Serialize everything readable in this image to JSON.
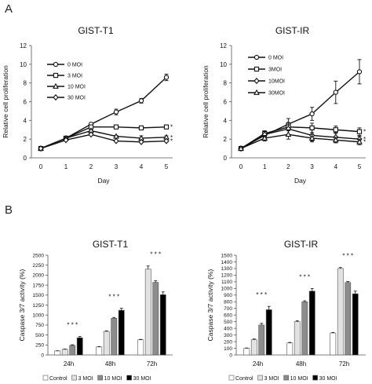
{
  "panels": {
    "a": "A",
    "b": "B"
  },
  "colors": {
    "line": "#111111",
    "bar_colors": [
      "#ffffff",
      "#e2e2e2",
      "#8c8c8c",
      "#000000"
    ]
  },
  "markers": [
    "circle",
    "square",
    "triangle",
    "diamond"
  ],
  "chart_data": [
    {
      "type": "line",
      "title": "GIST-T1",
      "xlabel": "Day",
      "ylabel": "Relative cell proliferation",
      "x": [
        0,
        1,
        2,
        3,
        4,
        5
      ],
      "ylim": [
        0,
        12
      ],
      "yticks": [
        0,
        2,
        4,
        6,
        8,
        10,
        12
      ],
      "series": [
        {
          "name": "0 MOI",
          "marker": "circle",
          "values": [
            1,
            2.1,
            3.6,
            4.9,
            6.1,
            8.6
          ],
          "errors": [
            0,
            0.1,
            0.15,
            0.3,
            0.25,
            0.35
          ],
          "star": ""
        },
        {
          "name": "3 MOI",
          "marker": "square",
          "values": [
            1,
            2.1,
            3.3,
            3.3,
            3.2,
            3.3
          ],
          "errors": [
            0,
            0.1,
            0.1,
            0.1,
            0.1,
            0.15
          ],
          "star": "*"
        },
        {
          "name": "10 MOI",
          "marker": "triangle",
          "values": [
            1,
            2.1,
            2.9,
            2.3,
            2.1,
            2.2
          ],
          "errors": [
            0,
            0.1,
            0.1,
            0.1,
            0.25,
            0.15
          ],
          "star": "*"
        },
        {
          "name": "30 MOI",
          "marker": "diamond",
          "values": [
            1,
            1.9,
            2.5,
            1.8,
            1.7,
            1.8
          ],
          "errors": [
            0,
            0.1,
            0.1,
            0.1,
            0.1,
            0.1
          ],
          "star": "*"
        }
      ]
    },
    {
      "type": "line",
      "title": "GIST-IR",
      "xlabel": "Day",
      "ylabel": "Relative cell proliferation",
      "x": [
        0,
        1,
        2,
        3,
        4,
        5
      ],
      "ylim": [
        0,
        12
      ],
      "yticks": [
        0,
        2,
        4,
        6,
        8,
        10,
        12
      ],
      "series": [
        {
          "name": "0 MOI",
          "marker": "circle",
          "values": [
            1,
            2.4,
            3.6,
            4.7,
            7.0,
            9.2
          ],
          "errors": [
            0,
            0.3,
            0.6,
            0.7,
            1.2,
            1.3
          ],
          "star": ""
        },
        {
          "name": "3MOI",
          "marker": "square",
          "values": [
            1,
            2.6,
            3.3,
            3.2,
            3.0,
            2.8
          ],
          "errors": [
            0,
            0.3,
            0.4,
            0.5,
            0.4,
            0.4
          ],
          "star": "*"
        },
        {
          "name": "10MOI",
          "marker": "diamond",
          "values": [
            1,
            2.5,
            3.1,
            2.4,
            2.2,
            2.0
          ],
          "errors": [
            0,
            0.3,
            0.6,
            0.6,
            0.5,
            0.3
          ],
          "star": "*"
        },
        {
          "name": "30MOI",
          "marker": "triangle",
          "values": [
            1,
            2.1,
            2.5,
            2.1,
            1.9,
            1.7
          ],
          "errors": [
            0,
            0.3,
            0.5,
            0.4,
            0.3,
            0.3
          ],
          "star": "*"
        }
      ]
    },
    {
      "type": "bar",
      "title": "GIST-T1",
      "ylabel": "Caspase 3/7 activity (%)",
      "categories": [
        "24h",
        "48h",
        "72h"
      ],
      "ylim": [
        0,
        2500
      ],
      "yticks": [
        0,
        250,
        500,
        750,
        1000,
        1250,
        1500,
        1750,
        2000,
        2250,
        2500
      ],
      "stars": [
        "* * *",
        "* * *",
        "* * *"
      ],
      "series": [
        {
          "name": "Control",
          "values": [
            100,
            200,
            380
          ],
          "errors": [
            5,
            10,
            10
          ]
        },
        {
          "name": "3 MOI",
          "values": [
            140,
            590,
            2150
          ],
          "errors": [
            8,
            15,
            80
          ]
        },
        {
          "name": "10 MOI",
          "values": [
            240,
            920,
            1820
          ],
          "errors": [
            15,
            20,
            40
          ]
        },
        {
          "name": "30 MOI",
          "values": [
            430,
            1120,
            1510
          ],
          "errors": [
            30,
            50,
            70
          ]
        }
      ]
    },
    {
      "type": "bar",
      "title": "GIST-IR",
      "ylabel": "Caspase 3/7 activity (%)",
      "categories": [
        "24h",
        "48h",
        "72h"
      ],
      "ylim": [
        0,
        1500
      ],
      "yticks": [
        0,
        100,
        200,
        300,
        400,
        500,
        600,
        700,
        800,
        900,
        1000,
        1100,
        1200,
        1300,
        1400,
        1500
      ],
      "stars": [
        "* * *",
        "* * *",
        "* * *"
      ],
      "series": [
        {
          "name": "Control",
          "values": [
            100,
            180,
            330
          ],
          "errors": [
            5,
            8,
            8
          ]
        },
        {
          "name": "3 MOI",
          "values": [
            230,
            500,
            1300
          ],
          "errors": [
            10,
            15,
            15
          ]
        },
        {
          "name": "10 MOI",
          "values": [
            450,
            800,
            1090
          ],
          "errors": [
            25,
            15,
            15
          ]
        },
        {
          "name": "30 MOI",
          "values": [
            680,
            960,
            920
          ],
          "errors": [
            50,
            40,
            40
          ]
        }
      ]
    }
  ],
  "bar_legend": [
    "Control",
    "3 MOI",
    "10 MOI",
    "30 MOI"
  ]
}
